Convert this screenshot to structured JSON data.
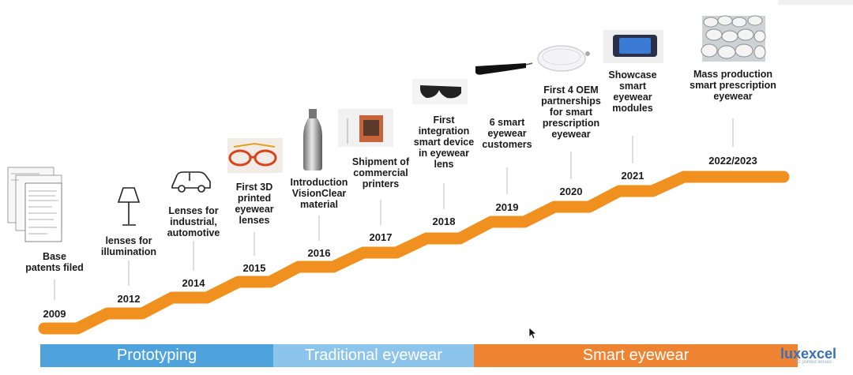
{
  "colors": {
    "step": "#f0901f",
    "phase_blue": "#4ea3dd",
    "phase_lightblue": "#8dc4eb",
    "phase_orange": "#ee8432",
    "stem": "#bbbbbb",
    "logo": "#3a6fb5"
  },
  "milestones": [
    {
      "year": "2009",
      "label": "Base\npatents filed",
      "icon": "patent-documents-icon"
    },
    {
      "year": "2012",
      "label": "lenses for\nillumination",
      "icon": "lamp-icon"
    },
    {
      "year": "2014",
      "label": "Lenses for\nindustrial,\nautomotive",
      "icon": "car-icon"
    },
    {
      "year": "2015",
      "label": "First 3D\nprinted\neyewear\nlenses",
      "icon": "printed-glasses-icon"
    },
    {
      "year": "2016",
      "label": "Introduction\nVisionClear\nmaterial",
      "icon": "bottle-icon"
    },
    {
      "year": "2017",
      "label": "Shipment of\ncommercial\nprinters",
      "icon": "printer-icon"
    },
    {
      "year": "2018",
      "label": "First\nintegration\nsmart device\nin eyewear\nlens",
      "icon": "sunglasses-icon"
    },
    {
      "year": "2019",
      "label": "6 smart\neyewear\ncustomers",
      "icon": "smart-glasses-icon"
    },
    {
      "year": "2020",
      "label": "First 4 OEM\npartnerships\nfor smart\nprescription\neyewear",
      "icon": "lens-icon"
    },
    {
      "year": "2021",
      "label": "Showcase\nsmart\neyewear\nmodules",
      "icon": "module-icon"
    },
    {
      "year": "2022/2023",
      "label": "Mass production\nsmart prescription\neyewear",
      "icon": "lens-stack-icon"
    }
  ],
  "phases": [
    {
      "label": "Prototyping"
    },
    {
      "label": "Traditional eyewear"
    },
    {
      "label": "Smart eyewear"
    }
  ],
  "logo": {
    "text": "luxexcel",
    "tagline": "3D printed lenses"
  }
}
